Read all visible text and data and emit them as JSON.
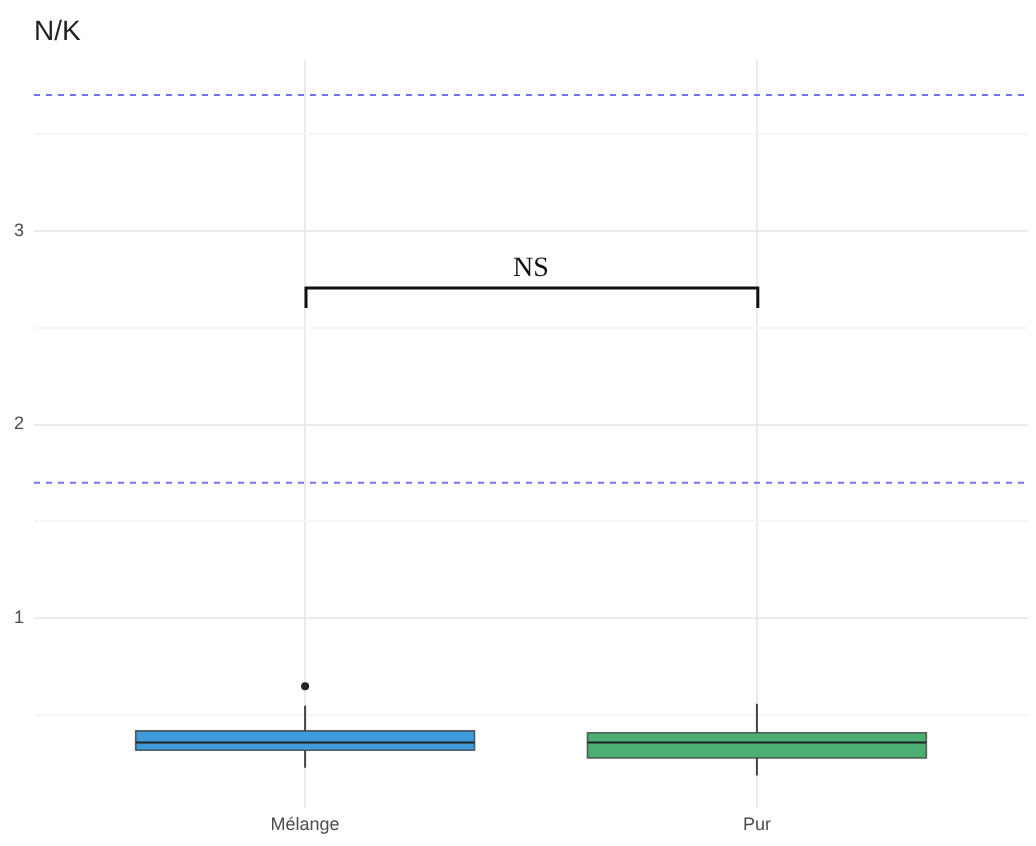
{
  "chart_data": {
    "type": "box",
    "ylabel": "N/K",
    "categories": [
      "Mélange",
      "Pur"
    ],
    "colors": [
      "#3f9bd7",
      "#4caf72"
    ],
    "boxes": [
      {
        "low": 0.23,
        "q1": 0.32,
        "median": 0.36,
        "q3": 0.42,
        "high": 0.55,
        "outliers": [
          0.65
        ]
      },
      {
        "low": 0.19,
        "q1": 0.28,
        "median": 0.36,
        "q3": 0.41,
        "high": 0.56
      }
    ],
    "ylim": [
      0.02,
      3.88
    ],
    "yticks": [
      {
        "value": 0.5,
        "label": null
      },
      1,
      {
        "value": 1.5,
        "label": null
      },
      2,
      {
        "value": 2.5,
        "label": null
      },
      3,
      {
        "value": 3.5,
        "label": null
      }
    ],
    "grid": true,
    "ref_lines": [
      {
        "axis": "y",
        "value": 1.7,
        "color": "#7373f5",
        "line_style": "dashed"
      },
      {
        "axis": "y",
        "value": 3.7,
        "color": "#7373f5",
        "line_style": "dashed"
      }
    ],
    "annotations": [
      "NS"
    ]
  }
}
